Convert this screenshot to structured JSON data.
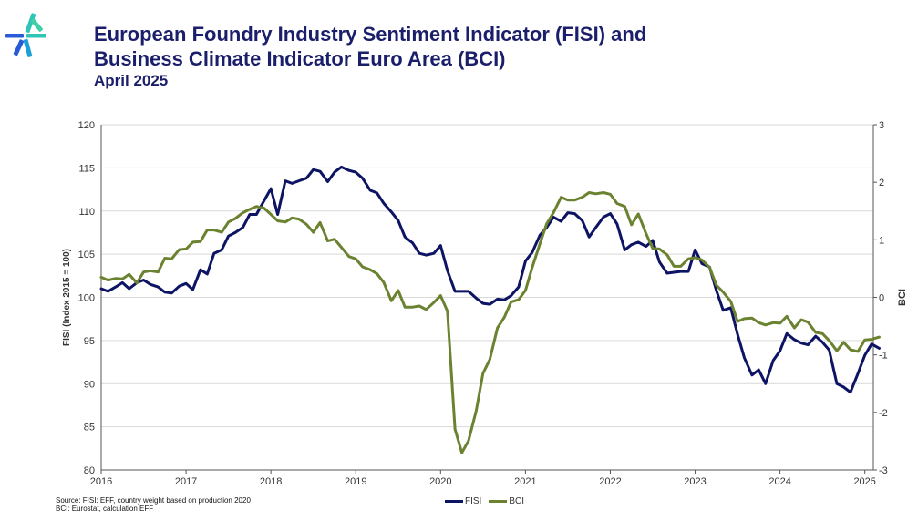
{
  "header": {
    "title_line1": "European Foundry Industry Sentiment Indicator (FISI) and",
    "title_line2": "Business Climate Indicator Euro Area (BCI)",
    "subtitle": "April 2025"
  },
  "footer": {
    "source_line1": "Source: FISI: EFF, country weight based on production 2020",
    "source_line2": "BCI: Eurostat, calculation EFF"
  },
  "colors": {
    "fisi": "#0d1463",
    "bci": "#6b8231",
    "grid": "#d9d9d9",
    "axis": "#555555"
  },
  "chart_data": {
    "type": "line",
    "ylabel": "FISI (Index 2015 = 100)",
    "y2label": "BCI",
    "ylim": [
      80,
      120
    ],
    "y2lim": [
      -3,
      3
    ],
    "yticks": [
      80,
      85,
      90,
      95,
      100,
      105,
      110,
      115,
      120
    ],
    "y2ticks": [
      -3,
      -2,
      -1,
      0,
      1,
      2,
      3
    ],
    "xlim": [
      2016.0,
      2025.1
    ],
    "xticks": [
      "2016",
      "2017",
      "2018",
      "2019",
      "2020",
      "2021",
      "2022",
      "2023",
      "2024",
      "2025"
    ],
    "grid": true,
    "legend_position": "bottom",
    "series": [
      {
        "name": "FISI",
        "axis": "left",
        "values": [
          [
            2016.0,
            101.0
          ],
          [
            2016.08,
            100.7
          ],
          [
            2016.17,
            101.2
          ],
          [
            2016.25,
            101.7
          ],
          [
            2016.33,
            101.0
          ],
          [
            2016.42,
            101.7
          ],
          [
            2016.5,
            102.0
          ],
          [
            2016.58,
            101.5
          ],
          [
            2016.67,
            101.2
          ],
          [
            2016.75,
            100.6
          ],
          [
            2016.83,
            100.5
          ],
          [
            2016.92,
            101.3
          ],
          [
            2017.0,
            101.6
          ],
          [
            2017.08,
            100.9
          ],
          [
            2017.17,
            103.2
          ],
          [
            2017.25,
            102.7
          ],
          [
            2017.33,
            105.1
          ],
          [
            2017.42,
            105.5
          ],
          [
            2017.5,
            107.1
          ],
          [
            2017.58,
            107.5
          ],
          [
            2017.67,
            108.1
          ],
          [
            2017.75,
            109.6
          ],
          [
            2017.83,
            109.6
          ],
          [
            2017.92,
            111.2
          ],
          [
            2018.0,
            112.6
          ],
          [
            2018.08,
            109.6
          ],
          [
            2018.17,
            113.5
          ],
          [
            2018.25,
            113.2
          ],
          [
            2018.33,
            113.5
          ],
          [
            2018.42,
            113.8
          ],
          [
            2018.5,
            114.8
          ],
          [
            2018.58,
            114.6
          ],
          [
            2018.67,
            113.4
          ],
          [
            2018.75,
            114.5
          ],
          [
            2018.83,
            115.1
          ],
          [
            2018.92,
            114.7
          ],
          [
            2019.0,
            114.5
          ],
          [
            2019.08,
            113.8
          ],
          [
            2019.17,
            112.4
          ],
          [
            2019.25,
            112.1
          ],
          [
            2019.33,
            110.9
          ],
          [
            2019.42,
            109.9
          ],
          [
            2019.5,
            108.9
          ],
          [
            2019.58,
            107.0
          ],
          [
            2019.67,
            106.3
          ],
          [
            2019.75,
            105.1
          ],
          [
            2019.83,
            104.9
          ],
          [
            2019.92,
            105.1
          ],
          [
            2020.0,
            106.0
          ],
          [
            2020.08,
            103.1
          ],
          [
            2020.17,
            100.7
          ],
          [
            2020.25,
            100.7
          ],
          [
            2020.33,
            100.7
          ],
          [
            2020.42,
            99.9
          ],
          [
            2020.5,
            99.3
          ],
          [
            2020.58,
            99.2
          ],
          [
            2020.67,
            99.8
          ],
          [
            2020.75,
            99.7
          ],
          [
            2020.83,
            100.2
          ],
          [
            2020.92,
            101.2
          ],
          [
            2021.0,
            104.2
          ],
          [
            2021.08,
            105.2
          ],
          [
            2021.17,
            107.2
          ],
          [
            2021.25,
            108.1
          ],
          [
            2021.33,
            109.3
          ],
          [
            2021.42,
            108.8
          ],
          [
            2021.5,
            109.8
          ],
          [
            2021.58,
            109.7
          ],
          [
            2021.67,
            108.9
          ],
          [
            2021.75,
            107.0
          ],
          [
            2021.83,
            108.1
          ],
          [
            2021.92,
            109.3
          ],
          [
            2022.0,
            109.7
          ],
          [
            2022.08,
            108.5
          ],
          [
            2022.17,
            105.5
          ],
          [
            2022.25,
            106.1
          ],
          [
            2022.33,
            106.4
          ],
          [
            2022.42,
            105.9
          ],
          [
            2022.5,
            106.6
          ],
          [
            2022.58,
            104.1
          ],
          [
            2022.67,
            102.8
          ],
          [
            2022.75,
            102.9
          ],
          [
            2022.83,
            103.0
          ],
          [
            2022.92,
            103.0
          ],
          [
            2023.0,
            105.5
          ],
          [
            2023.08,
            103.9
          ],
          [
            2023.17,
            103.5
          ],
          [
            2023.25,
            100.8
          ],
          [
            2023.33,
            98.5
          ],
          [
            2023.42,
            98.8
          ],
          [
            2023.5,
            95.7
          ],
          [
            2023.58,
            93.0
          ],
          [
            2023.67,
            91.0
          ],
          [
            2023.75,
            91.6
          ],
          [
            2023.83,
            90.0
          ],
          [
            2023.92,
            92.7
          ],
          [
            2024.0,
            93.8
          ],
          [
            2024.08,
            95.8
          ],
          [
            2024.17,
            95.1
          ],
          [
            2024.25,
            94.7
          ],
          [
            2024.33,
            94.5
          ],
          [
            2024.42,
            95.5
          ],
          [
            2024.5,
            94.8
          ],
          [
            2024.58,
            93.9
          ],
          [
            2024.67,
            90.0
          ],
          [
            2024.75,
            89.6
          ],
          [
            2024.83,
            89.0
          ],
          [
            2024.92,
            91.2
          ],
          [
            2025.0,
            93.3
          ],
          [
            2025.08,
            94.6
          ],
          [
            2025.17,
            94.1
          ]
        ]
      },
      {
        "name": "BCI",
        "axis": "right",
        "values": [
          [
            2016.0,
            0.35
          ],
          [
            2016.08,
            0.3
          ],
          [
            2016.17,
            0.33
          ],
          [
            2016.25,
            0.32
          ],
          [
            2016.33,
            0.4
          ],
          [
            2016.42,
            0.25
          ],
          [
            2016.5,
            0.44
          ],
          [
            2016.58,
            0.46
          ],
          [
            2016.67,
            0.44
          ],
          [
            2016.75,
            0.68
          ],
          [
            2016.83,
            0.67
          ],
          [
            2016.92,
            0.83
          ],
          [
            2017.0,
            0.84
          ],
          [
            2017.08,
            0.96
          ],
          [
            2017.17,
            0.97
          ],
          [
            2017.25,
            1.17
          ],
          [
            2017.33,
            1.17
          ],
          [
            2017.42,
            1.13
          ],
          [
            2017.5,
            1.31
          ],
          [
            2017.58,
            1.37
          ],
          [
            2017.67,
            1.47
          ],
          [
            2017.75,
            1.53
          ],
          [
            2017.83,
            1.58
          ],
          [
            2017.92,
            1.55
          ],
          [
            2018.0,
            1.44
          ],
          [
            2018.08,
            1.33
          ],
          [
            2018.17,
            1.31
          ],
          [
            2018.25,
            1.38
          ],
          [
            2018.33,
            1.36
          ],
          [
            2018.42,
            1.27
          ],
          [
            2018.5,
            1.13
          ],
          [
            2018.58,
            1.3
          ],
          [
            2018.67,
            0.98
          ],
          [
            2018.75,
            1.01
          ],
          [
            2018.83,
            0.87
          ],
          [
            2018.92,
            0.71
          ],
          [
            2019.0,
            0.67
          ],
          [
            2019.08,
            0.53
          ],
          [
            2019.17,
            0.48
          ],
          [
            2019.25,
            0.41
          ],
          [
            2019.33,
            0.26
          ],
          [
            2019.42,
            -0.06
          ],
          [
            2019.5,
            0.12
          ],
          [
            2019.58,
            -0.17
          ],
          [
            2019.67,
            -0.17
          ],
          [
            2019.75,
            -0.15
          ],
          [
            2019.83,
            -0.21
          ],
          [
            2019.92,
            -0.09
          ],
          [
            2020.0,
            0.03
          ],
          [
            2020.08,
            -0.24
          ],
          [
            2020.17,
            -2.29
          ],
          [
            2020.25,
            -2.7
          ],
          [
            2020.33,
            -2.49
          ],
          [
            2020.42,
            -1.97
          ],
          [
            2020.5,
            -1.32
          ],
          [
            2020.58,
            -1.08
          ],
          [
            2020.67,
            -0.53
          ],
          [
            2020.75,
            -0.35
          ],
          [
            2020.83,
            -0.08
          ],
          [
            2020.92,
            -0.04
          ],
          [
            2021.0,
            0.12
          ],
          [
            2021.08,
            0.52
          ],
          [
            2021.17,
            0.93
          ],
          [
            2021.25,
            1.28
          ],
          [
            2021.33,
            1.47
          ],
          [
            2021.42,
            1.74
          ],
          [
            2021.5,
            1.69
          ],
          [
            2021.58,
            1.69
          ],
          [
            2021.67,
            1.74
          ],
          [
            2021.75,
            1.82
          ],
          [
            2021.83,
            1.8
          ],
          [
            2021.92,
            1.82
          ],
          [
            2022.0,
            1.79
          ],
          [
            2022.08,
            1.63
          ],
          [
            2022.17,
            1.58
          ],
          [
            2022.25,
            1.26
          ],
          [
            2022.33,
            1.45
          ],
          [
            2022.42,
            1.11
          ],
          [
            2022.5,
            0.85
          ],
          [
            2022.58,
            0.84
          ],
          [
            2022.67,
            0.74
          ],
          [
            2022.75,
            0.54
          ],
          [
            2022.83,
            0.54
          ],
          [
            2022.92,
            0.67
          ],
          [
            2023.0,
            0.69
          ],
          [
            2023.08,
            0.65
          ],
          [
            2023.17,
            0.52
          ],
          [
            2023.25,
            0.21
          ],
          [
            2023.33,
            0.09
          ],
          [
            2023.42,
            -0.07
          ],
          [
            2023.5,
            -0.42
          ],
          [
            2023.58,
            -0.37
          ],
          [
            2023.67,
            -0.36
          ],
          [
            2023.75,
            -0.44
          ],
          [
            2023.83,
            -0.48
          ],
          [
            2023.92,
            -0.44
          ],
          [
            2024.0,
            -0.45
          ],
          [
            2024.08,
            -0.33
          ],
          [
            2024.17,
            -0.53
          ],
          [
            2024.25,
            -0.39
          ],
          [
            2024.33,
            -0.43
          ],
          [
            2024.42,
            -0.61
          ],
          [
            2024.5,
            -0.63
          ],
          [
            2024.58,
            -0.75
          ],
          [
            2024.67,
            -0.93
          ],
          [
            2024.75,
            -0.78
          ],
          [
            2024.83,
            -0.91
          ],
          [
            2024.92,
            -0.94
          ],
          [
            2025.0,
            -0.74
          ],
          [
            2025.08,
            -0.73
          ],
          [
            2025.17,
            -0.69
          ]
        ]
      }
    ]
  }
}
